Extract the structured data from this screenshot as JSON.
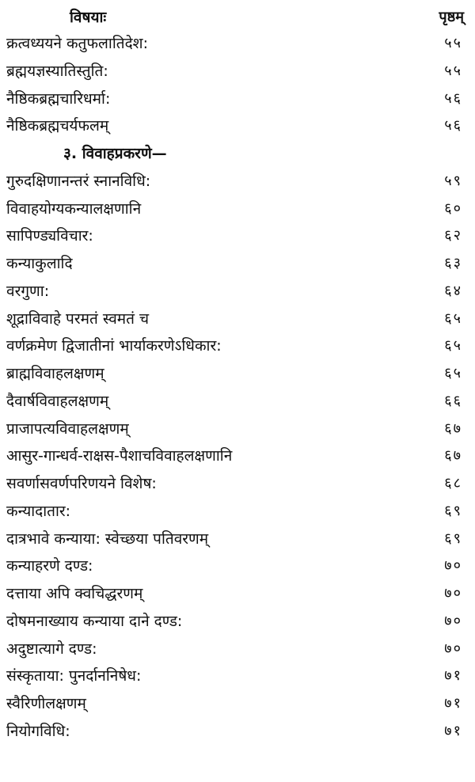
{
  "header": {
    "subject": "विषयाः",
    "page": "पृष्ठम्"
  },
  "entries": [
    {
      "title": "क्रत्वध्ययने कतुफलातिदेश:",
      "page": "५५"
    },
    {
      "title": "ब्रह्मयज्ञस्यातिस्तुति:",
      "page": "५५"
    },
    {
      "title": "नैष्ठिकब्रह्मचारिधर्मा:",
      "page": "५६"
    },
    {
      "title": "नैष्ठिकब्रह्मचर्यफलम्",
      "page": "५६"
    },
    {
      "title": "३. विवाहप्रकरणे—",
      "page": "",
      "section": true
    },
    {
      "title": "गुरुदक्षिणानन्तरं स्नानविधि:",
      "page": "५९"
    },
    {
      "title": "विवाहयोग्यकन्यालक्षणानि",
      "page": "६०"
    },
    {
      "title": "सापिण्ड्यविचार:",
      "page": "६२"
    },
    {
      "title": "कन्याकुलादि",
      "page": "६३"
    },
    {
      "title": "वरगुणा:",
      "page": "६४"
    },
    {
      "title": "शूद्राविवाहे परमतं स्वमतं च",
      "page": "६५"
    },
    {
      "title": "वर्णक्रमेण द्विजातीनां भार्याकरणेऽधिकार:",
      "page": "६५"
    },
    {
      "title": "ब्राह्मविवाहलक्षणम्",
      "page": "६५"
    },
    {
      "title": "दैवार्षविवाहलक्षणम्",
      "page": "६६"
    },
    {
      "title": "प्राजापत्यविवाहलक्षणम्",
      "page": "६७"
    },
    {
      "title": "आसुर-गान्धर्व-राक्षस-पैशाचविवाहलक्षणानि",
      "page": "६७"
    },
    {
      "title": "सवर्णासवर्णपरिणयने विशेष:",
      "page": "६८"
    },
    {
      "title": "कन्यादातार:",
      "page": "६९"
    },
    {
      "title": "दात्रभावे कन्याया: स्वेच्छया पतिवरणम्",
      "page": "६९"
    },
    {
      "title": "कन्याहरणे दण्ड:",
      "page": "७०"
    },
    {
      "title": "दत्ताया अपि क्वचिद्धरणम्",
      "page": "७०"
    },
    {
      "title": "दोषमनाख्याय कन्याया दाने दण्ड:",
      "page": "७०"
    },
    {
      "title": "अदुष्टात्यागे दण्ड:",
      "page": "७०"
    },
    {
      "title": "संस्कृताया: पुनर्दाननिषेध:",
      "page": "७१"
    },
    {
      "title": "स्वैरिणीलक्षणम्",
      "page": "७१"
    },
    {
      "title": "नियोगविधि:",
      "page": "७१"
    }
  ]
}
